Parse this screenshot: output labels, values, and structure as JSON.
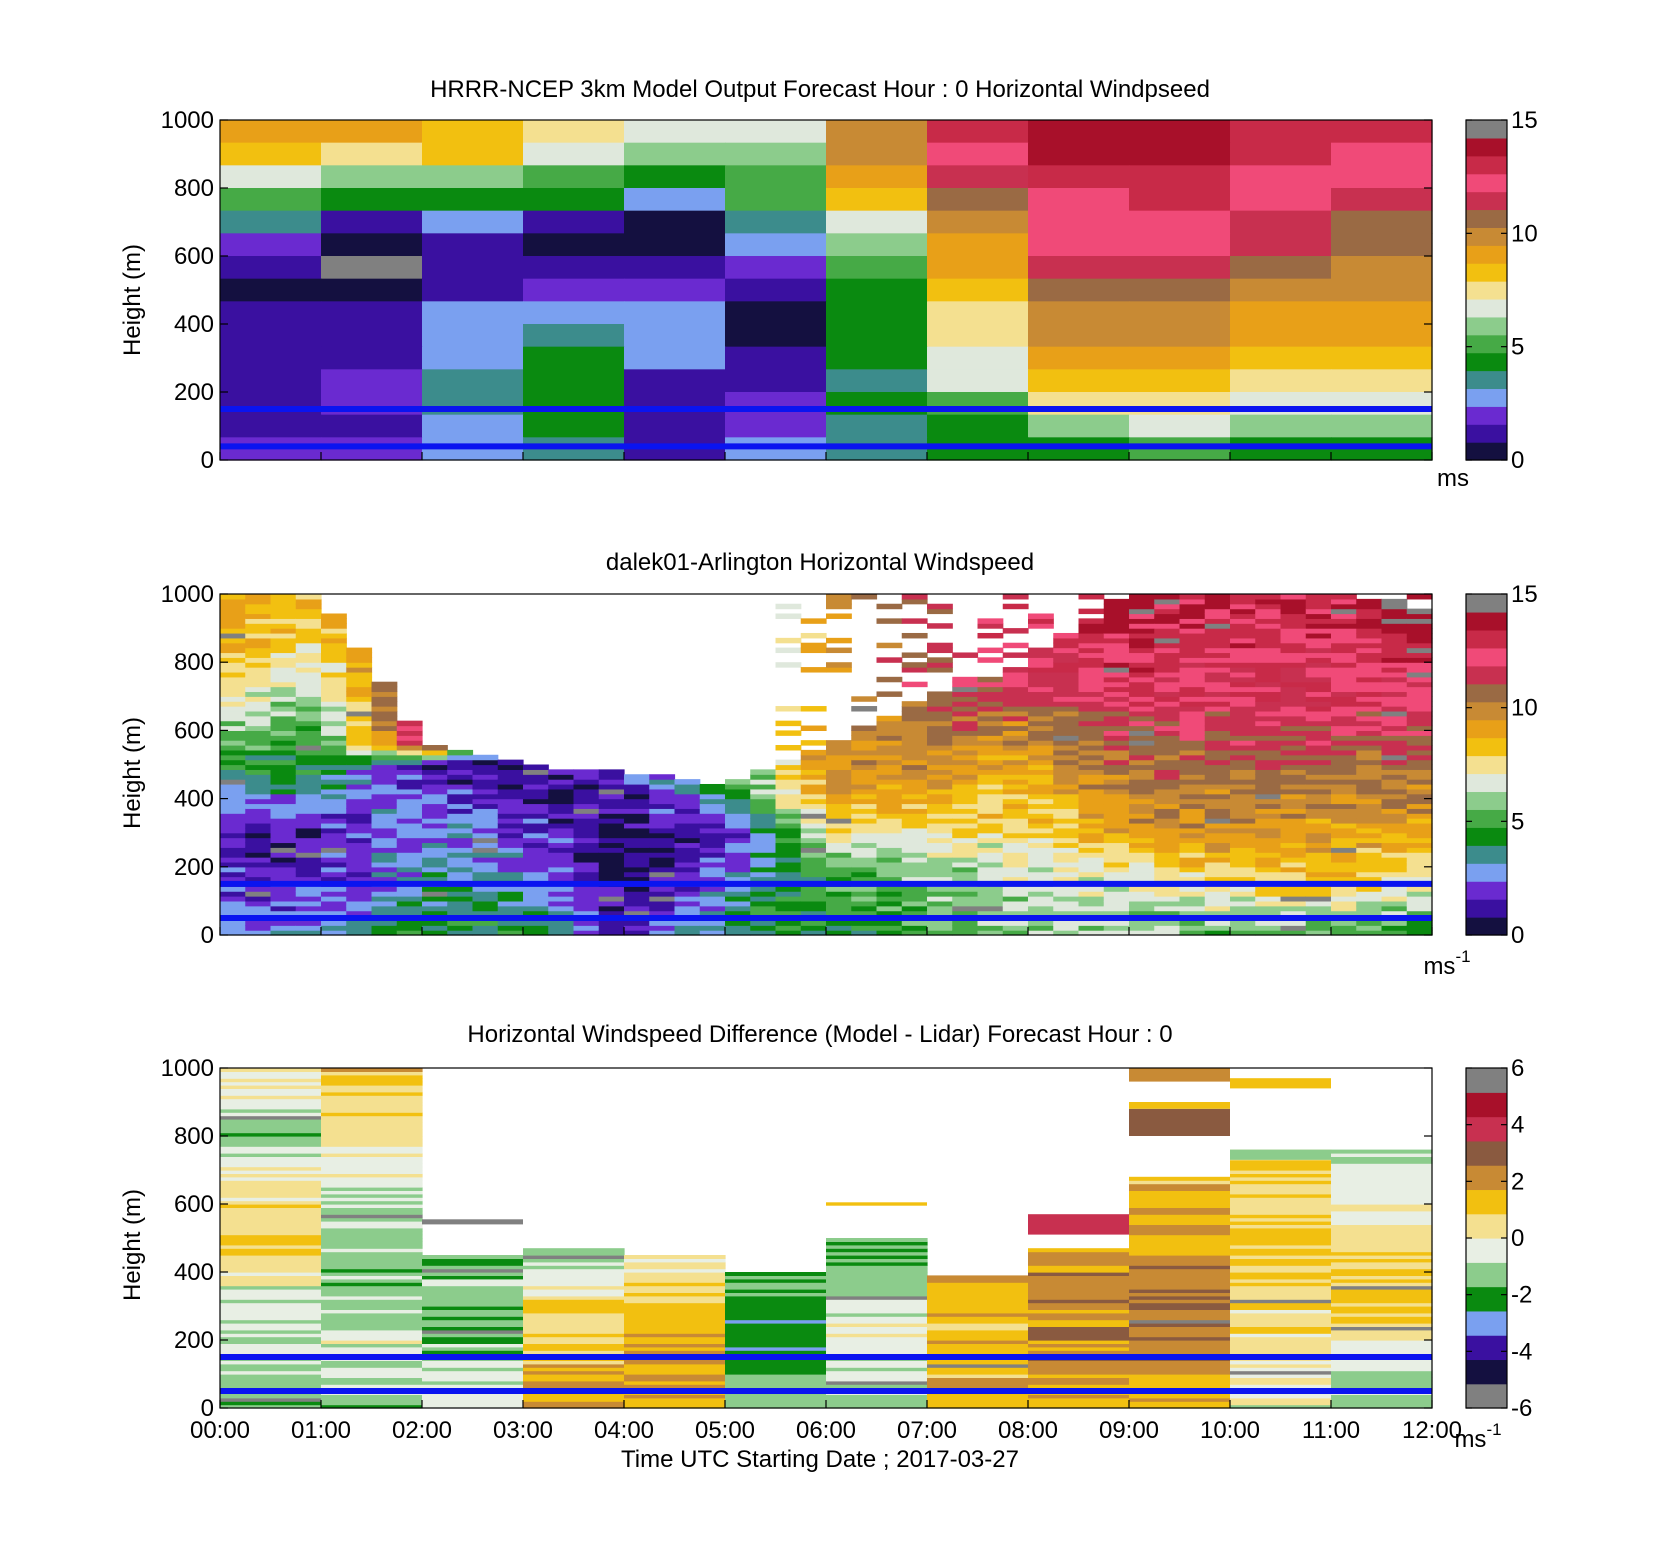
{
  "colors": {
    "wind_scale": [
      "#141040",
      "#3a10a0",
      "#6a2ad0",
      "#7aa0f0",
      "#3c8c8c",
      "#0a8a10",
      "#46aa46",
      "#8ccc8c",
      "#dfe8dc",
      "#f4e090",
      "#f2c010",
      "#e8a018",
      "#c88a34",
      "#9a6a44",
      "#c83050",
      "#f04a78",
      "#c82a48",
      "#a8102a",
      "#808080"
    ],
    "diff_scale": [
      "#808080",
      "#141040",
      "#3a10a0",
      "#7aa0f0",
      "#0a8a10",
      "#8ccc8c",
      "#e8efe4",
      "#f4e090",
      "#f2c010",
      "#c88a34",
      "#8a5a40",
      "#c83050",
      "#a8102a",
      "#808080"
    ],
    "height_line": "#0a14f0"
  },
  "chart_data": [
    {
      "type": "heatmap",
      "id": "model",
      "title": "HRRR-NCEP 3km Model Output   Forecast Hour : 0 Horizontal Windpseed",
      "ylabel": "Height (m)",
      "xlabel": "",
      "ylim": [
        0,
        1000
      ],
      "yticks": [
        "0",
        "200",
        "400",
        "600",
        "800",
        "1000"
      ],
      "xlim": [
        0,
        12
      ],
      "colorbar": {
        "range": [
          0,
          15
        ],
        "ticks": [
          "0",
          "5",
          "10",
          "15"
        ],
        "unit": "ms",
        "unit_sup": ""
      },
      "height_lines": [
        150,
        40
      ],
      "rows_top_to_bottom": [
        [
          11,
          11,
          10,
          9,
          8,
          8,
          12,
          16,
          17,
          17,
          16,
          16
        ],
        [
          10,
          9,
          10,
          8,
          7,
          7,
          12,
          15,
          17,
          17,
          16,
          15
        ],
        [
          8,
          7,
          7,
          6,
          5,
          6,
          11,
          14,
          16,
          16,
          15,
          15
        ],
        [
          6,
          5,
          5,
          5,
          3,
          6,
          10,
          13,
          15,
          16,
          15,
          14
        ],
        [
          4,
          1,
          3,
          1,
          0,
          4,
          8,
          12,
          15,
          15,
          14,
          13
        ],
        [
          2,
          0,
          1,
          0,
          0,
          3,
          7,
          11,
          15,
          15,
          14,
          13
        ],
        [
          1,
          18,
          1,
          1,
          1,
          2,
          6,
          11,
          14,
          14,
          13,
          12
        ],
        [
          0,
          0,
          1,
          2,
          2,
          1,
          5,
          10,
          13,
          13,
          12,
          12
        ],
        [
          1,
          1,
          3,
          3,
          3,
          0,
          5,
          9,
          12,
          12,
          11,
          11
        ],
        [
          1,
          1,
          3,
          4,
          3,
          0,
          5,
          9,
          12,
          12,
          11,
          11
        ],
        [
          1,
          1,
          3,
          5,
          3,
          1,
          5,
          8,
          11,
          11,
          10,
          10
        ],
        [
          1,
          2,
          4,
          5,
          1,
          1,
          4,
          8,
          10,
          10,
          9,
          9
        ],
        [
          1,
          2,
          4,
          5,
          1,
          2,
          5,
          6,
          9,
          9,
          8,
          8
        ],
        [
          1,
          1,
          3,
          5,
          1,
          2,
          4,
          5,
          7,
          8,
          7,
          7
        ],
        [
          2,
          2,
          3,
          4,
          1,
          3,
          4,
          5,
          5,
          6,
          5,
          5
        ]
      ]
    },
    {
      "type": "heatmap",
      "id": "lidar",
      "title": "dalek01-Arlington  Horizontal Windspeed",
      "ylabel": "Height (m)",
      "xlabel": "",
      "ylim": [
        0,
        1000
      ],
      "yticks": [
        "0",
        "200",
        "400",
        "600",
        "800",
        "1000"
      ],
      "xlim": [
        0,
        12
      ],
      "colorbar": {
        "range": [
          0,
          15
        ],
        "ticks": [
          "0",
          "5",
          "10",
          "15"
        ],
        "unit": "ms",
        "unit_sup": "-1"
      },
      "height_lines": [
        150,
        50
      ]
    },
    {
      "type": "heatmap",
      "id": "diff",
      "title": "Horizontal Windspeed Difference (Model - Lidar) Forecast Hour : 0",
      "ylabel": "Height (m)",
      "xlabel": "Time UTC  Starting Date ; 2017-03-27",
      "ylim": [
        0,
        1000
      ],
      "yticks": [
        "0",
        "200",
        "400",
        "600",
        "800",
        "1000"
      ],
      "xlim": [
        0,
        12
      ],
      "xticks": [
        "00:00",
        "01:00",
        "02:00",
        "03:00",
        "04:00",
        "05:00",
        "06:00",
        "07:00",
        "08:00",
        "09:00",
        "10:00",
        "11:00",
        "12:00"
      ],
      "colorbar": {
        "range": [
          -6,
          6
        ],
        "ticks": [
          "-6",
          "-4",
          "-2",
          "0",
          "2",
          "4",
          "6"
        ],
        "unit": "ms",
        "unit_sup": "-1"
      },
      "height_lines": [
        150,
        50
      ]
    }
  ]
}
